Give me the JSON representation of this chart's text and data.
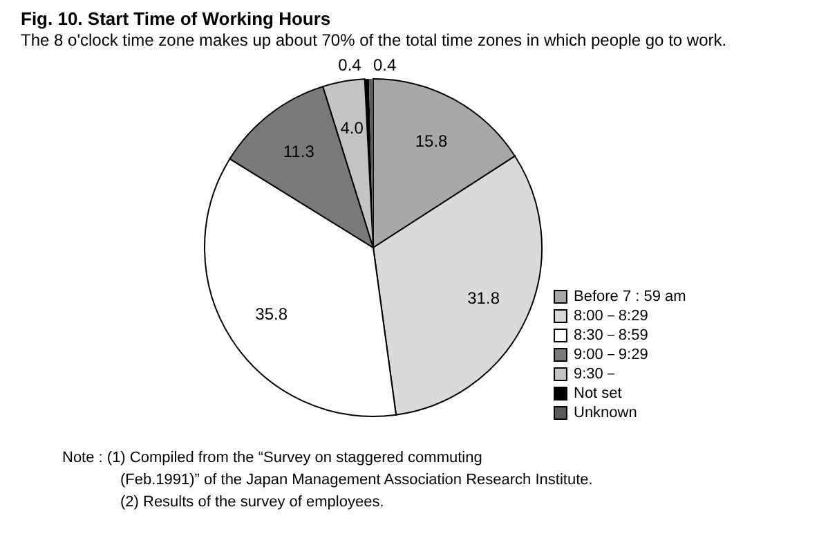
{
  "chart_data": {
    "type": "pie",
    "title": "Fig. 10. Start Time of Working Hours",
    "subtitle": "The 8 o'clock time zone makes up about 70% of the total time zones in which people go to work.",
    "categories": [
      "Before 7 : 59 am",
      "8:00－8:29",
      "8:30－8:59",
      "9:00－9:29",
      "9:30－",
      "Not set",
      "Unknown"
    ],
    "values": [
      15.8,
      31.8,
      35.8,
      11.3,
      4.0,
      0.4,
      0.4
    ],
    "colors": [
      "#a8a8a8",
      "#dadada",
      "#ffffff",
      "#7a7a7a",
      "#c4c4c4",
      "#000000",
      "#5a5a5a"
    ],
    "value_labels": [
      "15.8",
      "31.8",
      "35.8",
      "11.3",
      "4.0",
      "0.4",
      "0.4"
    ],
    "legend": "right",
    "annotations": [
      "Note : (1) Compiled from the “Survey on staggered commuting (Feb.1991)” of the Japan Management Association Research Institute.",
      "(2) Results of the survey of employees."
    ]
  }
}
